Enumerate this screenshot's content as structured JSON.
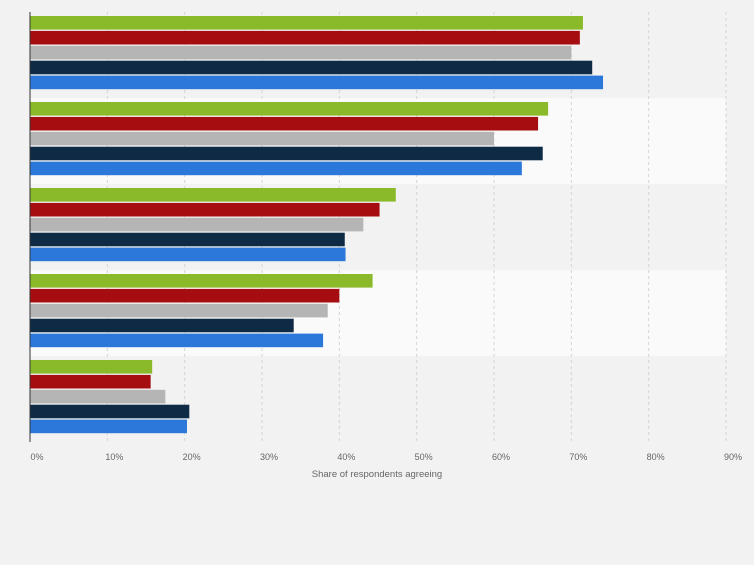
{
  "chart_data": {
    "type": "bar",
    "orientation": "horizontal",
    "categories": [
      "",
      "",
      "",
      "",
      ""
    ],
    "series": [
      {
        "color": "#8aba2a",
        "values": [
          71.5,
          67.0,
          47.3,
          44.3,
          15.8
        ]
      },
      {
        "color": "#a50d10",
        "values": [
          71.1,
          65.7,
          45.2,
          40.0,
          15.6
        ]
      },
      {
        "color": "#b5b5b5",
        "values": [
          70.0,
          60.0,
          43.1,
          38.5,
          17.5
        ]
      },
      {
        "color": "#0f2a45",
        "values": [
          72.7,
          66.3,
          40.7,
          34.1,
          20.6
        ]
      },
      {
        "color": "#2b78da",
        "values": [
          74.1,
          63.6,
          40.8,
          37.9,
          20.3
        ]
      }
    ],
    "xlim": [
      0,
      90
    ],
    "ticks": [
      "0%",
      "10%",
      "20%",
      "30%",
      "40%",
      "50%",
      "60%",
      "70%",
      "80%",
      "90%"
    ],
    "tick_values": [
      0,
      10,
      20,
      30,
      40,
      50,
      60,
      70,
      80,
      90
    ],
    "xlabel": "Share of respondents agreeing",
    "grid": "vertical dashed",
    "legend": "none"
  }
}
